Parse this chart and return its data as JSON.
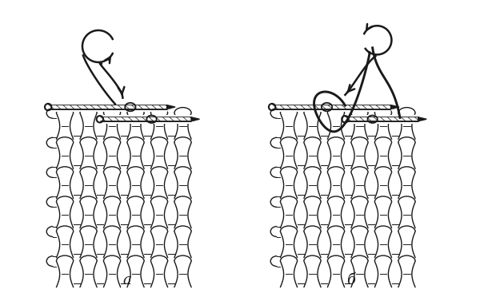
{
  "bg_color": "#ffffff",
  "line_color": "#1a1a1a",
  "label_a": "а",
  "label_b": "б",
  "label_fontsize": 13,
  "fig_width": 6.0,
  "fig_height": 3.67,
  "dpi": 100
}
